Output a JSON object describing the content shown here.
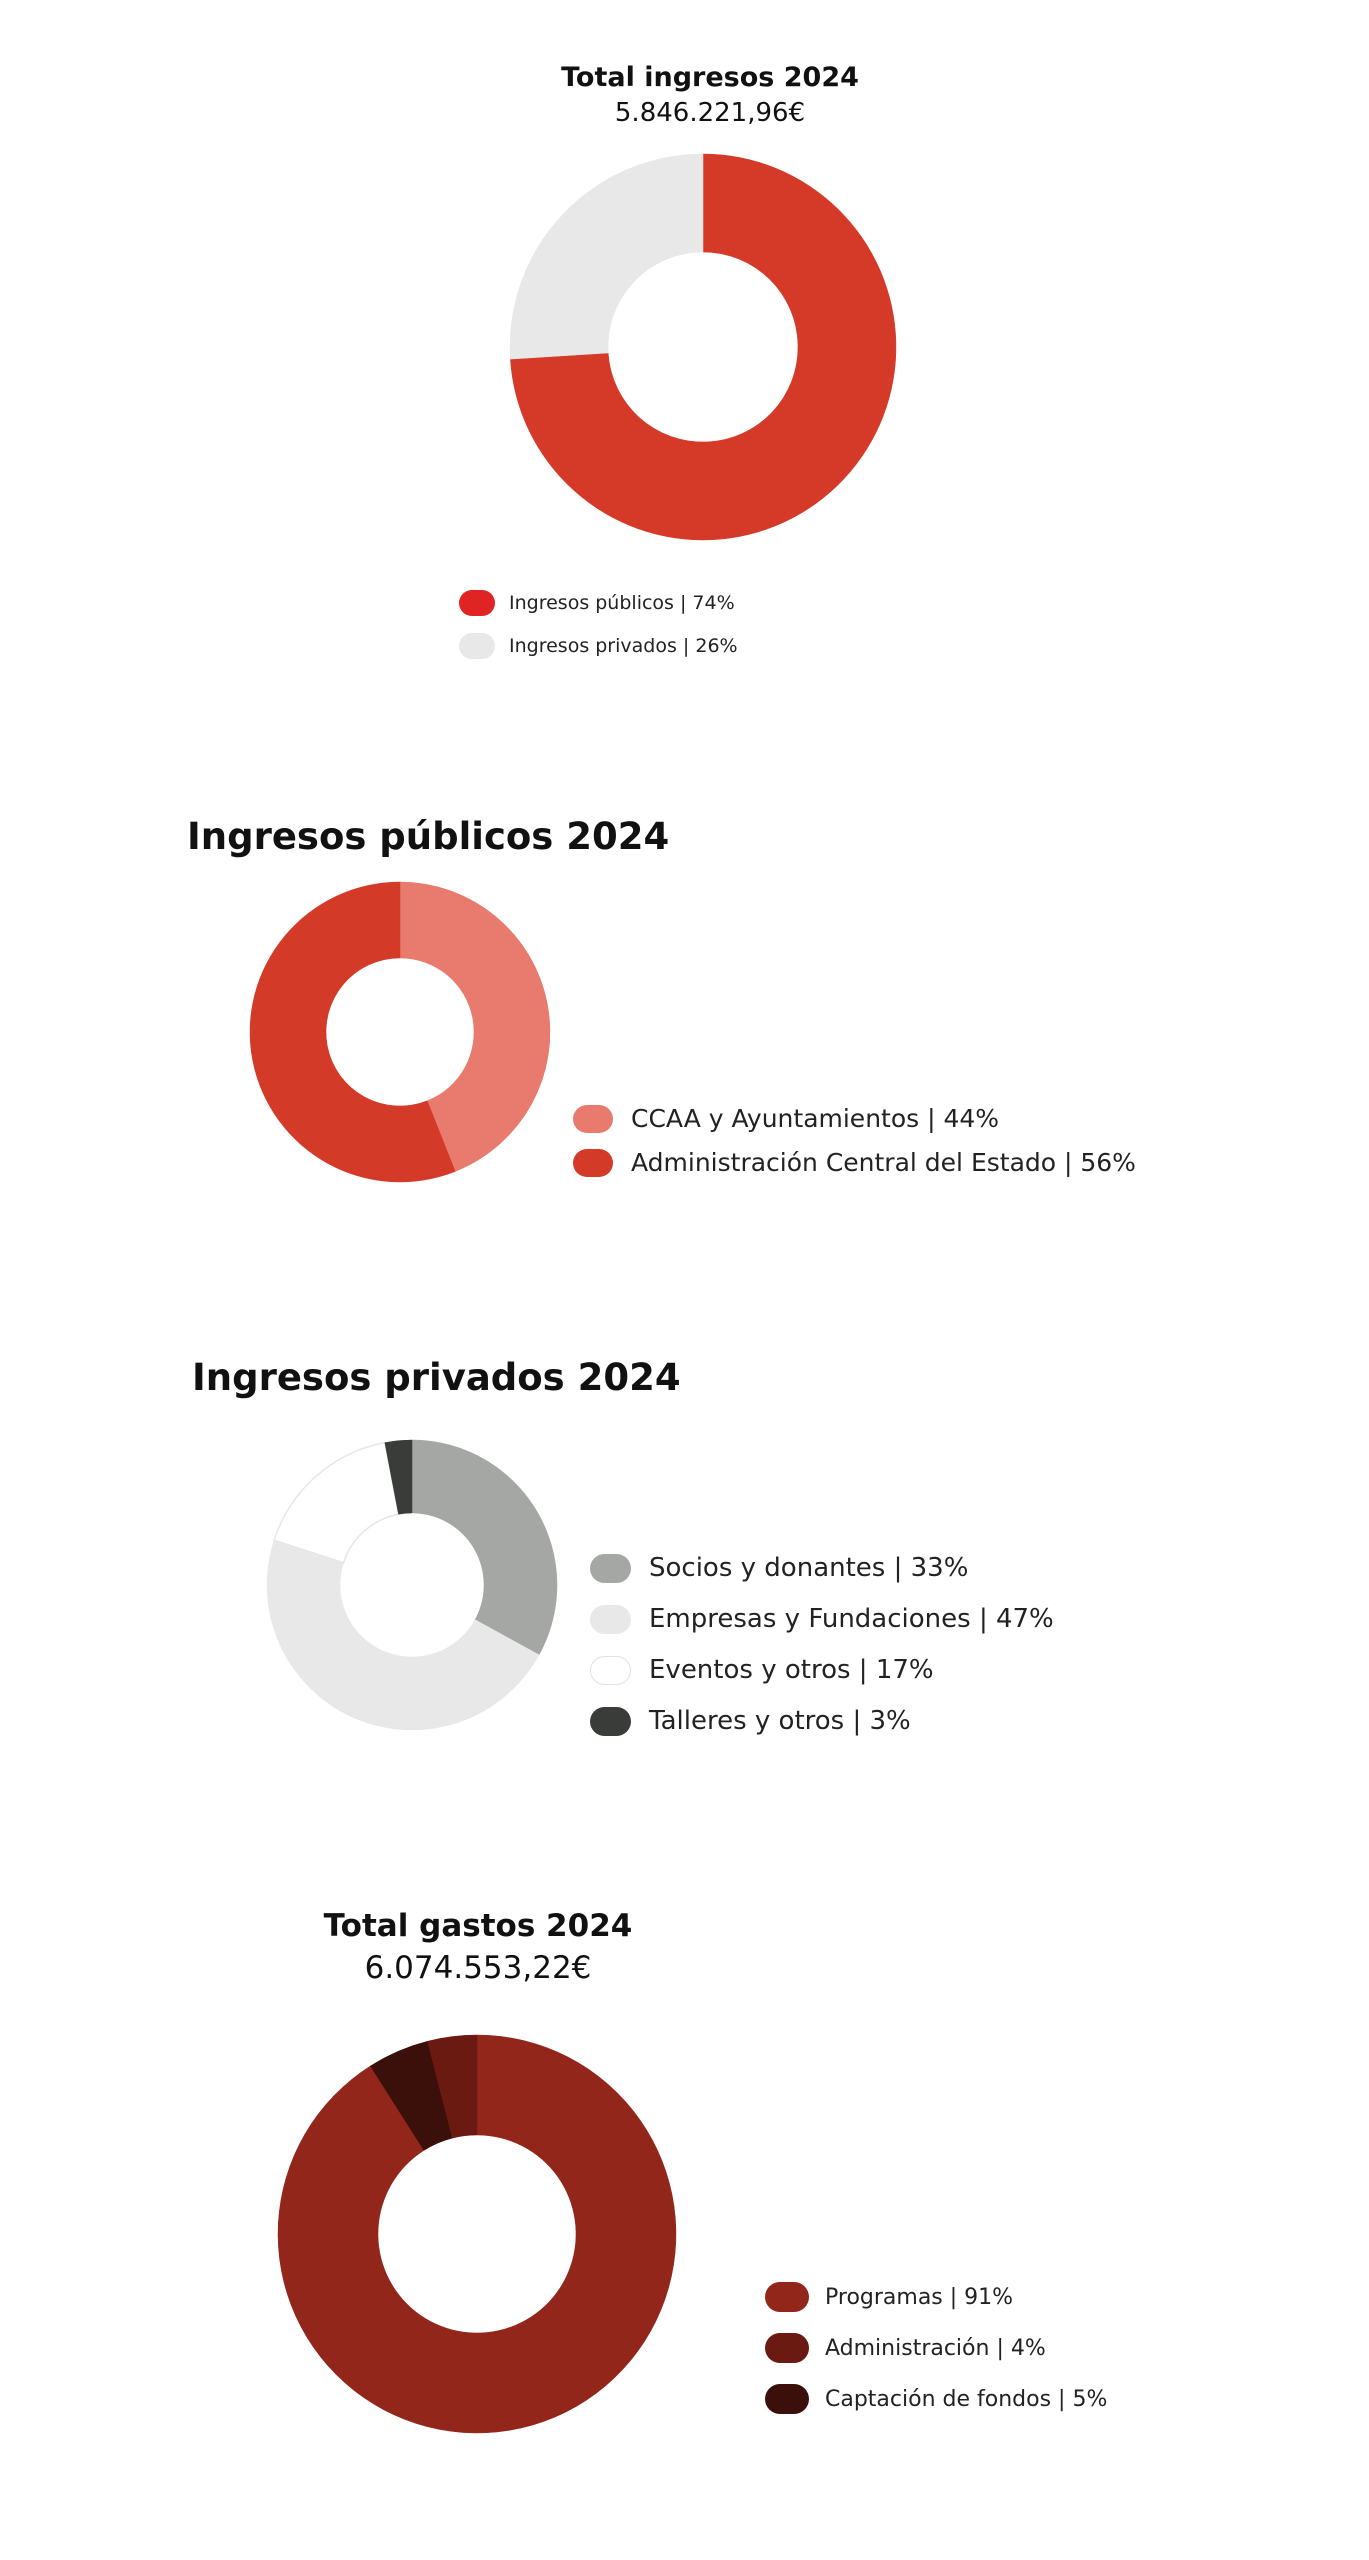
{
  "chart_data": [
    {
      "type": "pie",
      "title": "Total ingresos 2024",
      "subtitle": "5.846.221,96€",
      "categories": [
        "Ingresos públicos",
        "Ingresos privados"
      ],
      "values": [
        74,
        26
      ],
      "legend_labels": [
        "Ingresos públicos  | 74%",
        "Ingresos privados | 26%"
      ],
      "colors": [
        "#d53a28",
        "#e8e8e8"
      ],
      "swatch_colors": [
        "#e02424",
        "#e8e8e8"
      ],
      "legend": "bottom"
    },
    {
      "type": "pie",
      "title": "Ingresos públicos 2024",
      "categories": [
        "CCAA y Ayuntamientos",
        "Administración Central del Estado"
      ],
      "values": [
        44,
        56
      ],
      "legend_labels": [
        "CCAA y Ayuntamientos | 44%",
        "Administración Central del Estado | 56%"
      ],
      "colors": [
        "#e87b6d",
        "#d33a28"
      ],
      "swatch_colors": [
        "#e87b6d",
        "#d33a28"
      ],
      "legend": "right"
    },
    {
      "type": "pie",
      "title": "Ingresos privados 2024",
      "categories": [
        "Socios y donantes",
        "Empresas y Fundaciones",
        "Eventos y otros",
        "Talleres y otros"
      ],
      "values": [
        33,
        47,
        17,
        3
      ],
      "legend_labels": [
        "Socios y donantes  | 33%",
        "Empresas y Fundaciones | 47%",
        "Eventos y otros | 17%",
        "Talleres y otros | 3%"
      ],
      "colors": [
        "#a4a7a3",
        "#e8e8e8",
        "#ffffff",
        "#3a3c39"
      ],
      "swatch_colors": [
        "#a4a7a3",
        "#e8e8e8",
        "#ffffff",
        "#3a3c39"
      ],
      "legend": "right"
    },
    {
      "type": "pie",
      "title": "Total gastos 2024",
      "subtitle": "6.074.553,22€",
      "categories": [
        "Programas",
        "Captación de fondos",
        "Administración"
      ],
      "values": [
        91,
        5,
        4
      ],
      "legend_labels": [
        "Programas  | 91%",
        "Administración | 4%",
        "Captación de fondos | 5%"
      ],
      "colors": [
        "#93261b",
        "#3b0f0a",
        "#6b1a12"
      ],
      "swatch_colors": [
        "#93261b",
        "#6b1a12",
        "#3b0f0a"
      ],
      "legend": "right"
    }
  ]
}
